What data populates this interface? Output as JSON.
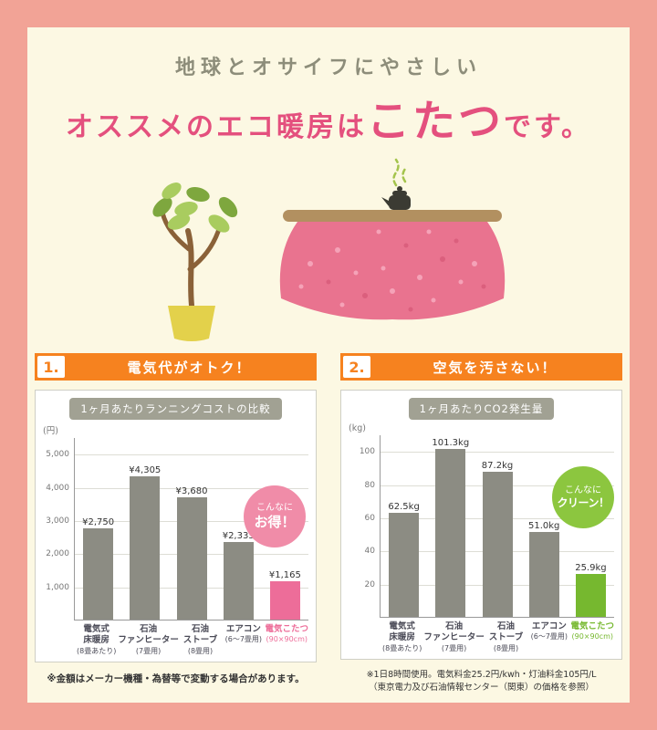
{
  "colors": {
    "background": "#F2A396",
    "panel": "#FCF8E3",
    "title_gray": "#8D8D7A",
    "title_pink": "#E4507E",
    "header_orange": "#F6821F",
    "chart_title_gray": "#A1A193"
  },
  "title": {
    "line1": "地球とオサイフにやさしい",
    "line2_prefix": "オススメのエコ暖房は",
    "line2_highlight": "こたつ",
    "line2_suffix": "です。"
  },
  "illustration": {
    "items": [
      "potted-plant",
      "kotatsu-with-pink-blanket",
      "teapot-with-steam"
    ]
  },
  "sections": [
    {
      "number": "1.",
      "heading": "電気代がオトク！",
      "badge": {
        "line1": "こんなに",
        "line2": "お得！",
        "color": "#F08CA8"
      },
      "footnotes": [
        "※金額はメーカー機種・為替等で変動する場合があります。"
      ]
    },
    {
      "number": "2.",
      "heading": "空気を汚さない！",
      "badge": {
        "line1": "こんなに",
        "line2": "クリーン！",
        "color": "#8CC63F"
      },
      "footnotes": [
        "※1日8時間使用。電気料金25.2円/kwh・灯油料金105円/L",
        "（東京電力及び石油情報センター（関東）の価格を参照）"
      ]
    }
  ],
  "chart_data": [
    {
      "type": "bar",
      "title": "1ヶ月あたりランニングコストの比較",
      "unit": "(円)",
      "categories": [
        {
          "lines": [
            "電気式",
            "床暖房"
          ],
          "note": "(8畳あたり)"
        },
        {
          "lines": [
            "石油",
            "ファンヒーター"
          ],
          "note": "(7畳用)"
        },
        {
          "lines": [
            "石油",
            "ストーブ"
          ],
          "note": "(8畳用)"
        },
        {
          "lines": [
            "エアコン"
          ],
          "note": "(6〜7畳用)"
        },
        {
          "lines": [
            "電気こたつ"
          ],
          "note": "(90×90cm)",
          "highlight": true
        }
      ],
      "values": [
        2750,
        4305,
        3680,
        2335,
        1165
      ],
      "labels": [
        "¥2,750",
        "¥4,305",
        "¥3,680",
        "¥2,335",
        "¥1,165"
      ],
      "ticks": [
        1000,
        2000,
        3000,
        4000,
        5000
      ],
      "tick_labels": [
        "1,000",
        "2,000",
        "3,000",
        "4,000",
        "5,000"
      ],
      "ymax": 5500,
      "bar_color": "#8C8C83",
      "highlight_color": "#ED6D99",
      "grid": true,
      "legend": "none"
    },
    {
      "type": "bar",
      "title": "1ヶ月あたりCO2発生量",
      "unit": "(kg)",
      "categories": [
        {
          "lines": [
            "電気式",
            "床暖房"
          ],
          "note": "(8畳あたり)"
        },
        {
          "lines": [
            "石油",
            "ファンヒーター"
          ],
          "note": "(7畳用)"
        },
        {
          "lines": [
            "石油",
            "ストーブ"
          ],
          "note": "(8畳用)"
        },
        {
          "lines": [
            "エアコン"
          ],
          "note": "(6〜7畳用)"
        },
        {
          "lines": [
            "電気こたつ"
          ],
          "note": "(90×90cm)",
          "highlight": true
        }
      ],
      "values": [
        62.5,
        101.3,
        87.2,
        51.0,
        25.9
      ],
      "labels": [
        "62.5kg",
        "101.3kg",
        "87.2kg",
        "51.0kg",
        "25.9kg"
      ],
      "ticks": [
        20,
        40,
        60,
        80,
        100
      ],
      "tick_labels": [
        "20",
        "40",
        "60",
        "80",
        "100"
      ],
      "ymax": 110,
      "bar_color": "#8C8C83",
      "highlight_color": "#76B82F",
      "grid": true,
      "legend": "none"
    }
  ]
}
